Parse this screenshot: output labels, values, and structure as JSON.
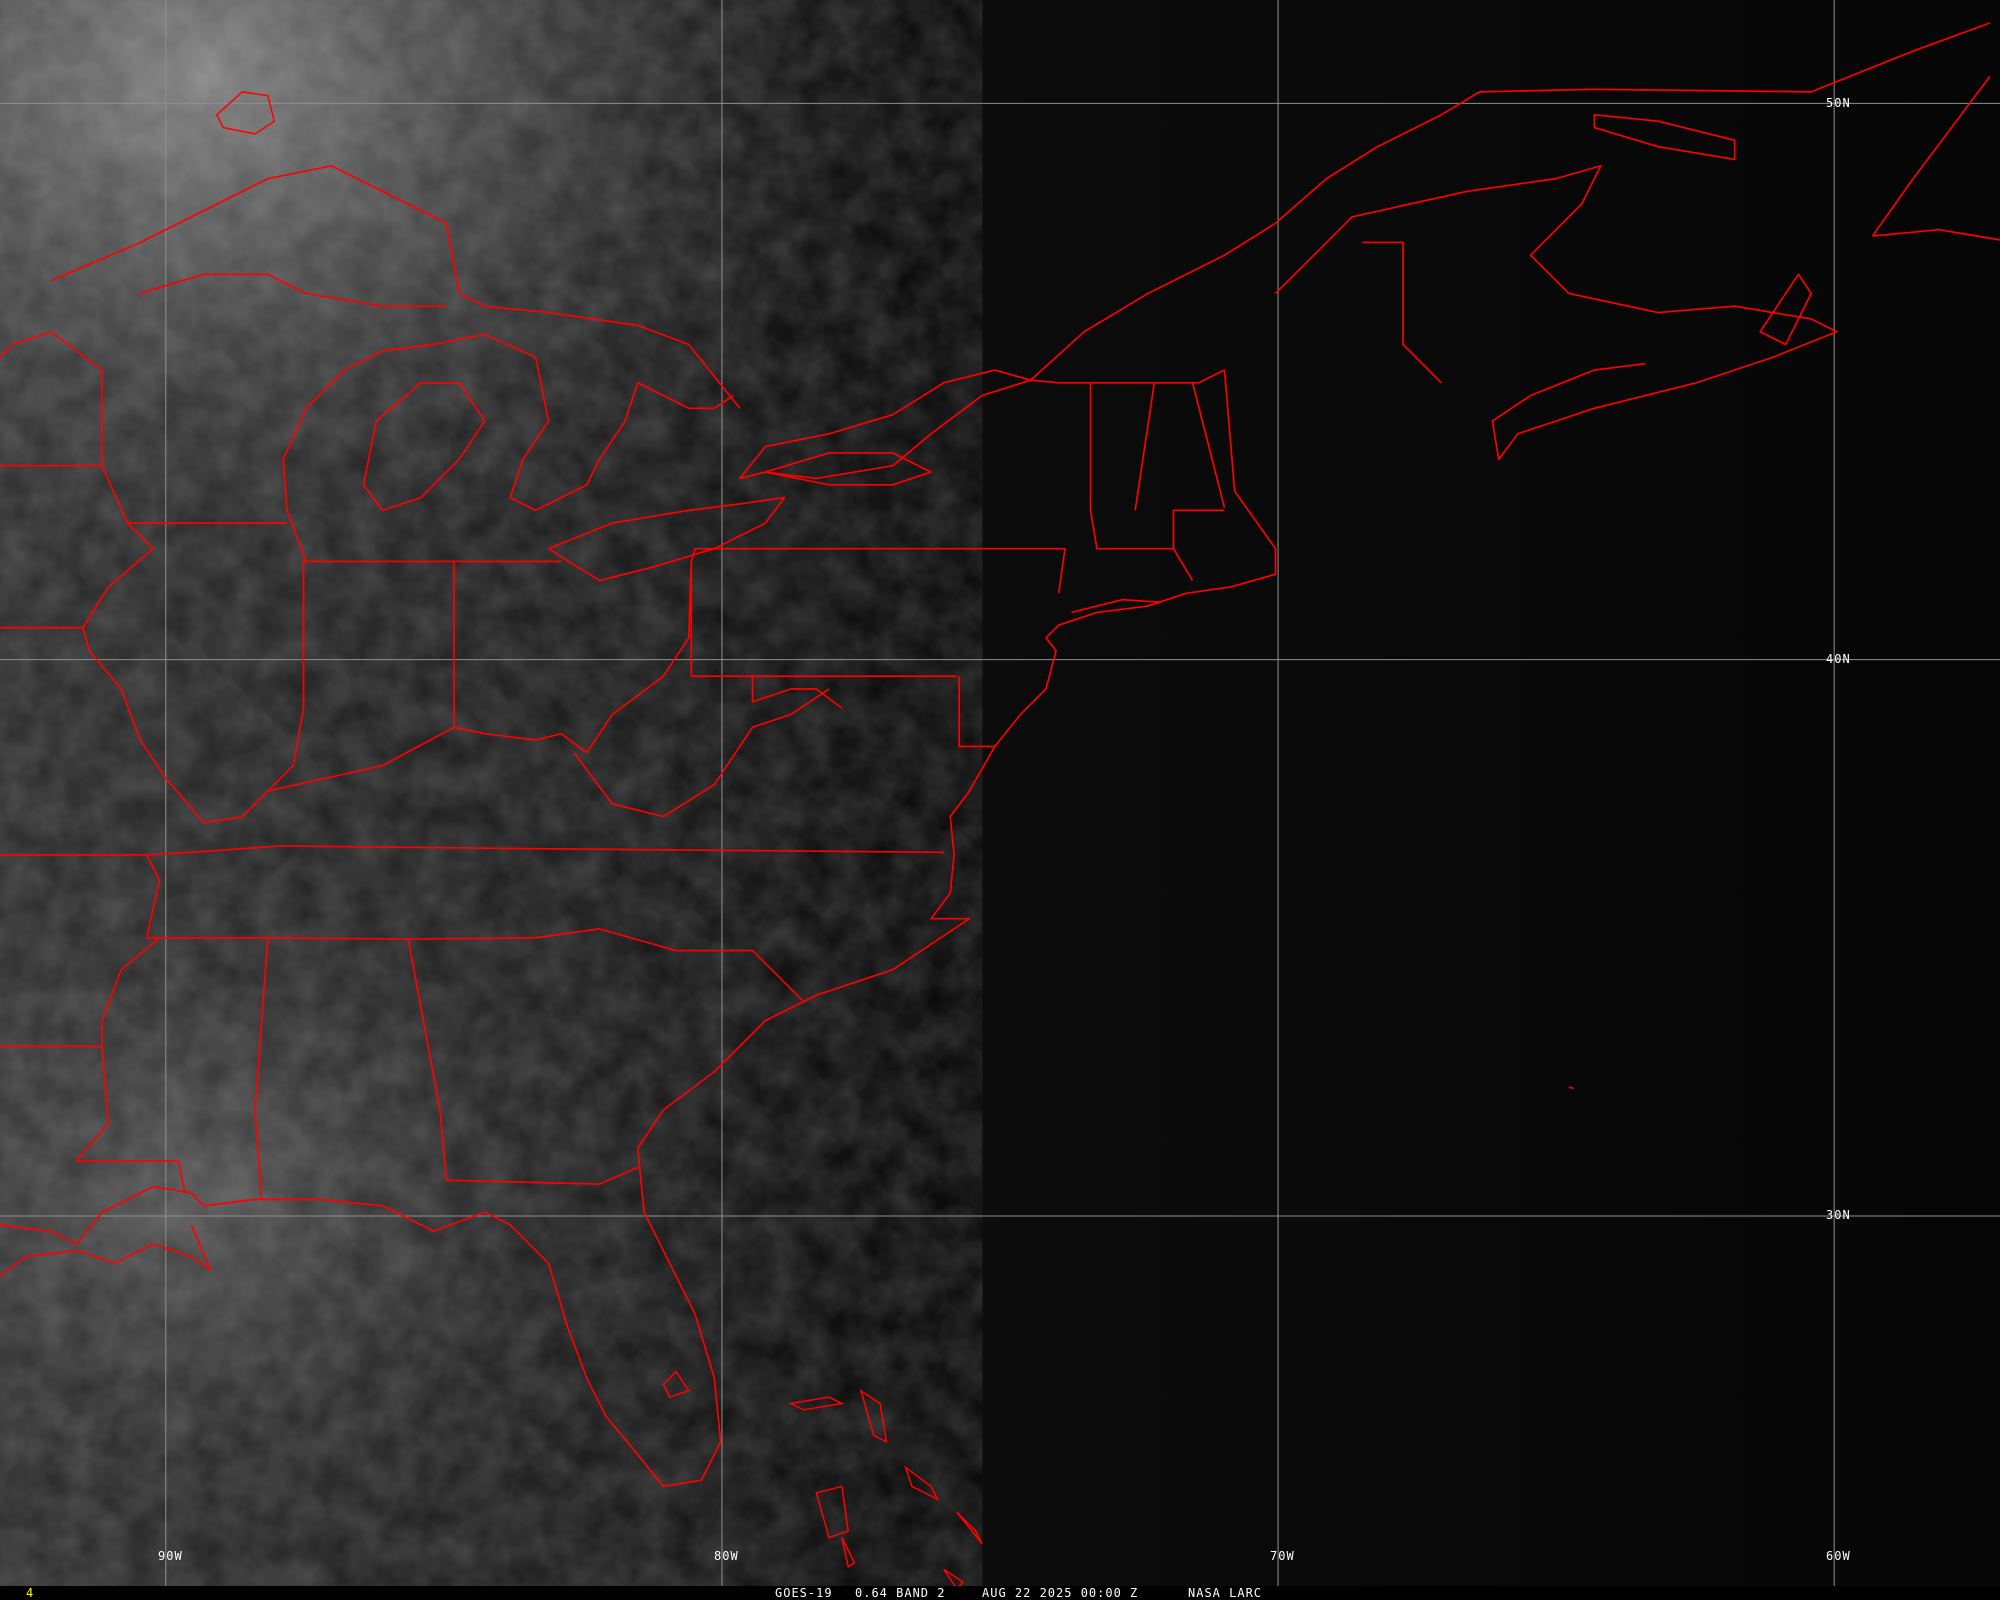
{
  "image": {
    "satellite": "GOES-19",
    "channel": "0.64 BAND 2",
    "datetime": "AUG 22 2025 00:00 Z",
    "source": "NASA LARC",
    "frame_number": "4",
    "colors": {
      "boundaries": "#ff0000",
      "grid": "#9a9a9a",
      "frame_number": "#ffff00"
    }
  },
  "grid": {
    "longitudes": [
      "90W",
      "80W",
      "70W",
      "60W"
    ],
    "latitudes": [
      "50N",
      "40N",
      "30N"
    ]
  }
}
